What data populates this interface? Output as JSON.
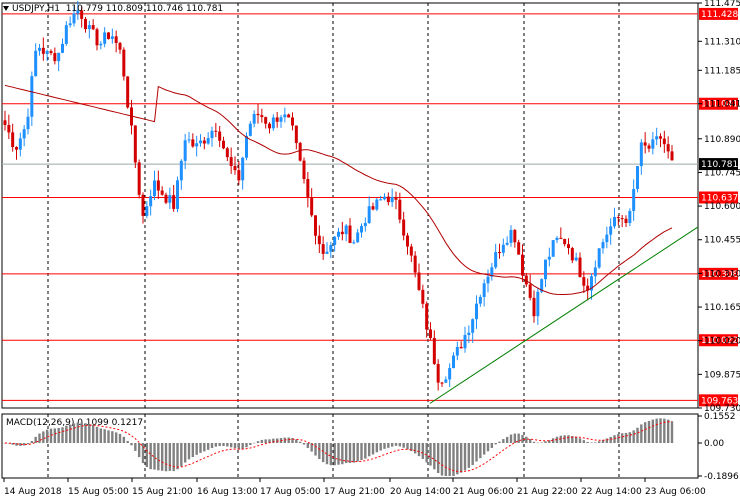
{
  "header": {
    "symbol": "USDJPY,H1",
    "ohlc": "110.779 110.809 110.746 110.781"
  },
  "macd": {
    "label": "MACD(12,26,9) 0.1099 0.1217",
    "ticks": [
      "0.1552",
      "0.00",
      "-0.1896"
    ],
    "ylim": [
      -0.1896,
      0.1552
    ]
  },
  "colors": {
    "bull": "#1e90ff",
    "bear": "#d20000",
    "ma": "#b00000",
    "level": "#ff0000",
    "trend": "#008000",
    "hist": "#808080",
    "signal": "#ff0000"
  },
  "chart_data": {
    "type": "candlestick",
    "symbol": "USDJPY",
    "timeframe": "H1",
    "ylim": [
      109.73,
      111.475
    ],
    "y_ticks": [
      "111.475",
      "111.310",
      "111.185",
      "111.041",
      "110.890",
      "110.745",
      "110.600",
      "110.455",
      "110.310",
      "110.165",
      "110.020",
      "109.875",
      "109.730"
    ],
    "x_labels": [
      "14 Aug 2018",
      "15 Aug 05:00",
      "15 Aug 21:00",
      "16 Aug 13:00",
      "17 Aug 05:00",
      "17 Aug 21:00",
      "20 Aug 14:00",
      "21 Aug 06:00",
      "21 Aug 22:00",
      "22 Aug 14:00",
      "23 Aug 06:00"
    ],
    "levels": [
      {
        "label": "111.428",
        "value": 111.428
      },
      {
        "label": "111.041",
        "value": 111.041
      },
      {
        "label": "110.637",
        "value": 110.637
      },
      {
        "label": "110.308",
        "value": 110.308
      },
      {
        "label": "110.022",
        "value": 110.022
      },
      {
        "label": "109.763",
        "value": 109.763
      }
    ],
    "current_price": {
      "label": "110.781",
      "value": 110.781
    },
    "close_path": [
      110.95,
      110.85,
      110.95,
      111.3,
      111.25,
      111.25,
      111.4,
      111.45,
      111.35,
      111.3,
      111.35,
      111.25,
      110.9,
      110.55,
      110.7,
      110.65,
      110.6,
      110.9,
      110.85,
      110.9,
      110.95,
      110.8,
      110.7,
      110.95,
      111.0,
      110.95,
      111.0,
      110.95,
      110.75,
      110.55,
      110.4,
      110.45,
      110.5,
      110.45,
      110.55,
      110.6,
      110.65,
      110.6,
      110.45,
      110.25,
      110.05,
      109.85,
      109.9,
      110.0,
      110.1,
      110.25,
      110.35,
      110.45,
      110.5,
      110.3,
      110.15,
      110.35,
      110.45,
      110.45,
      110.35,
      110.25,
      110.4,
      110.5,
      110.55,
      110.55,
      110.85,
      110.85,
      110.9,
      110.78
    ]
  }
}
